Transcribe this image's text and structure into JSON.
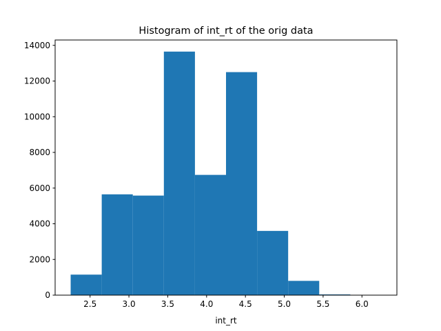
{
  "chart_data": {
    "type": "bar",
    "title": "Histogram of int_rt of the orig data",
    "xlabel": "int_rt",
    "ylabel": "",
    "bins": [
      {
        "x0": 2.25,
        "x1": 2.65,
        "count": 1150
      },
      {
        "x0": 2.65,
        "x1": 3.05,
        "count": 5650
      },
      {
        "x0": 3.05,
        "x1": 3.45,
        "count": 5580
      },
      {
        "x0": 3.45,
        "x1": 3.85,
        "count": 13650
      },
      {
        "x0": 3.85,
        "x1": 4.25,
        "count": 6740
      },
      {
        "x0": 4.25,
        "x1": 4.65,
        "count": 12500
      },
      {
        "x0": 4.65,
        "x1": 5.05,
        "count": 3600
      },
      {
        "x0": 5.05,
        "x1": 5.45,
        "count": 800
      },
      {
        "x0": 5.45,
        "x1": 5.85,
        "count": 40
      },
      {
        "x0": 5.85,
        "x1": 6.25,
        "count": 8
      }
    ],
    "xlim": [
      2.05,
      6.45
    ],
    "ylim": [
      0,
      14300
    ],
    "xticks": [
      2.5,
      3.0,
      3.5,
      4.0,
      4.5,
      5.0,
      5.5,
      6.0
    ],
    "xtick_labels": [
      "2.5",
      "3.0",
      "3.5",
      "4.0",
      "4.5",
      "5.0",
      "5.5",
      "6.0"
    ],
    "yticks": [
      0,
      2000,
      4000,
      6000,
      8000,
      10000,
      12000,
      14000
    ],
    "ytick_labels": [
      "0",
      "2000",
      "4000",
      "6000",
      "8000",
      "10000",
      "12000",
      "14000"
    ],
    "grid": false,
    "bar_color": "#1f77b4"
  }
}
